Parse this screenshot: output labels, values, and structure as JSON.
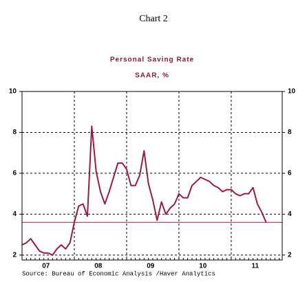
{
  "chart_data": {
    "type": "line",
    "chart_label": "Chart 2",
    "title": "Personal Saving Rate",
    "subtitle": "SAAR, %",
    "source": "Source:  Bureau of Economic Analysis /Haver Analytics",
    "x": [
      0,
      1,
      2,
      3,
      4,
      5,
      6,
      7,
      8,
      9,
      10,
      11,
      12,
      13,
      14,
      15,
      16,
      17,
      18,
      19,
      20,
      21,
      22,
      23,
      24,
      25,
      26,
      27,
      28,
      29,
      30,
      31,
      32,
      33,
      34,
      35,
      36,
      37,
      38,
      39,
      40,
      41,
      42,
      43,
      44,
      45,
      46,
      47,
      48,
      49,
      50,
      51,
      52,
      53,
      54,
      55,
      56
    ],
    "series": [
      {
        "name": "Personal Saving Rate",
        "color": "#a3173f",
        "values": [
          2.5,
          2.6,
          2.8,
          2.5,
          2.2,
          2.1,
          2.1,
          2.0,
          2.3,
          2.5,
          2.3,
          2.6,
          3.6,
          4.4,
          4.5,
          3.9,
          8.3,
          6.1,
          5.1,
          4.5,
          5.1,
          5.8,
          6.5,
          6.5,
          6.2,
          5.4,
          5.4,
          5.9,
          7.1,
          5.5,
          4.7,
          3.7,
          4.6,
          4.0,
          4.3,
          4.5,
          5.0,
          4.8,
          4.8,
          5.4,
          5.6,
          5.8,
          5.7,
          5.6,
          5.4,
          5.3,
          5.1,
          5.2,
          5.2,
          5.0,
          4.9,
          5.0,
          5.0,
          5.3,
          4.5,
          4.1,
          3.6
        ]
      }
    ],
    "reference_line": 3.6,
    "reference_color": "#a3173f",
    "xlim": [
      0,
      59.7
    ],
    "xticks": [
      {
        "value": 5.5,
        "label": "07"
      },
      {
        "value": 17.5,
        "label": "08"
      },
      {
        "value": 29.5,
        "label": "09"
      },
      {
        "value": 41.5,
        "label": "10"
      },
      {
        "value": 53.5,
        "label": "11"
      }
    ],
    "xgrid": [
      12,
      24,
      36,
      48
    ],
    "ylim": [
      1.76,
      10
    ],
    "yticks": [
      2,
      4,
      6,
      8,
      10
    ],
    "grid": true
  }
}
